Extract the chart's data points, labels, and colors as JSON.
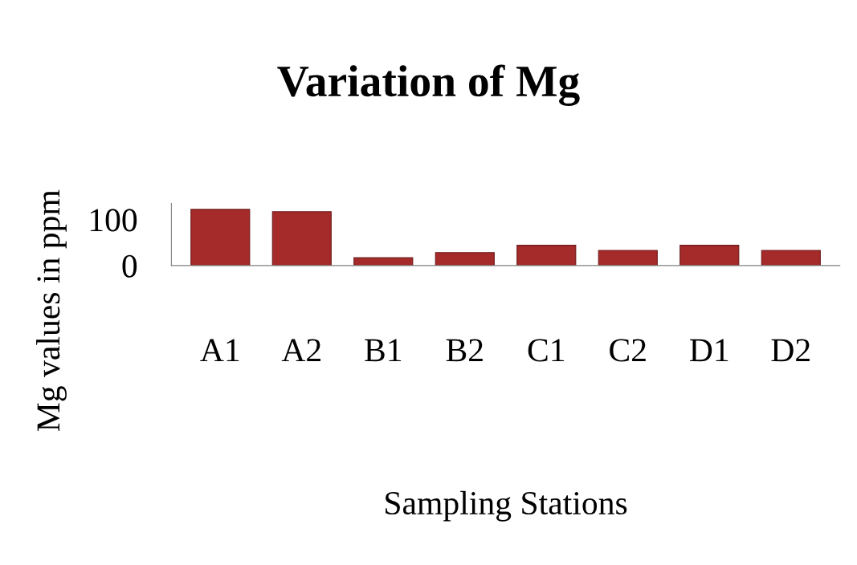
{
  "chart_data": {
    "type": "bar",
    "title": "Variation of Mg",
    "xlabel": "Sampling Stations",
    "ylabel": "Mg values in ppm",
    "categories": [
      "A1",
      "A2",
      "B1",
      "B2",
      "C1",
      "C2",
      "D1",
      "D2"
    ],
    "values": [
      122,
      117,
      17,
      28,
      44,
      33,
      44,
      33
    ],
    "color": "#a52a2a",
    "ylim": [
      0,
      135
    ],
    "yticks": [
      0,
      100
    ],
    "grid": false,
    "legend": false
  }
}
